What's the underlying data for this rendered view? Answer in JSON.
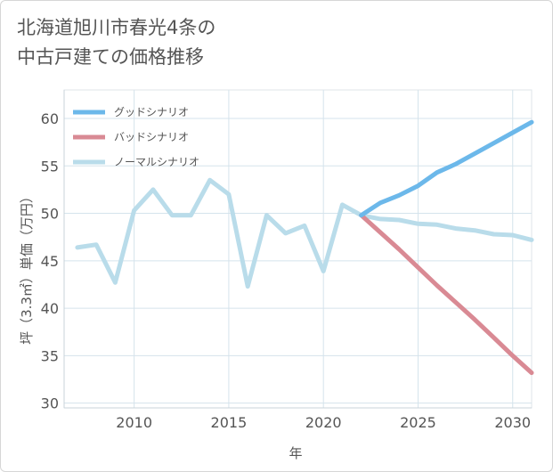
{
  "title_line1": "北海道旭川市春光4条の",
  "title_line2": "中古戸建ての価格推移",
  "chart_data": {
    "type": "line",
    "title": "北海道旭川市春光4条の中古戸建ての価格推移",
    "xlabel": "年",
    "ylabel": "坪（3.3㎡）単価（万円）",
    "xlim": [
      2006.3,
      2031
    ],
    "ylim": [
      29.5,
      63
    ],
    "x_ticks": [
      2010,
      2015,
      2020,
      2025,
      2030
    ],
    "y_ticks": [
      30,
      35,
      40,
      45,
      50,
      55,
      60
    ],
    "x_tick_labels": [
      "2010",
      "2015",
      "2020",
      "2025",
      "2030"
    ],
    "y_tick_labels": [
      "30",
      "35",
      "40",
      "45",
      "50",
      "55",
      "60"
    ],
    "grid": true,
    "legend_position": "top-left",
    "series": [
      {
        "name": "グッドシナリオ",
        "color": "#6cb8ea",
        "x": [
          2022,
          2023,
          2024,
          2025,
          2026,
          2027,
          2028,
          2029,
          2030,
          2031
        ],
        "y": [
          49.8,
          51.1,
          51.9,
          52.9,
          54.3,
          55.2,
          56.3,
          57.4,
          58.5,
          59.6
        ]
      },
      {
        "name": "バッドシナリオ",
        "color": "#d98a94",
        "x": [
          2022,
          2023,
          2024,
          2025,
          2026,
          2027,
          2028,
          2029,
          2030,
          2031
        ],
        "y": [
          49.8,
          48.0,
          46.2,
          44.3,
          42.4,
          40.6,
          38.8,
          36.9,
          35.0,
          33.2
        ]
      },
      {
        "name": "ノーマルシナリオ",
        "color": "#b9dcea",
        "x": [
          2007,
          2008,
          2009,
          2010,
          2011,
          2012,
          2013,
          2014,
          2015,
          2016,
          2017,
          2018,
          2019,
          2020,
          2021,
          2022,
          2023,
          2024,
          2025,
          2026,
          2027,
          2028,
          2029,
          2030,
          2031
        ],
        "y": [
          46.4,
          46.7,
          42.7,
          50.3,
          52.5,
          49.8,
          49.8,
          53.5,
          52.0,
          42.3,
          49.8,
          47.9,
          48.7,
          43.9,
          50.9,
          49.8,
          49.4,
          49.3,
          48.9,
          48.8,
          48.4,
          48.2,
          47.8,
          47.7,
          47.2
        ]
      }
    ]
  }
}
